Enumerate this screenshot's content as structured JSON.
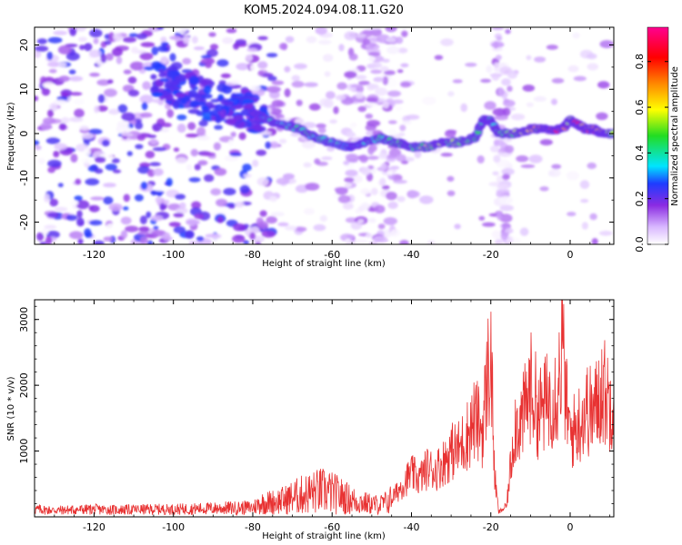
{
  "title": "KOM5.2024.094.08.11.G20",
  "chart_data": [
    {
      "type": "heatmap",
      "xlabel": "Height of straight line (km)",
      "ylabel": "Frequency (Hz)",
      "xlim": [
        -135,
        11
      ],
      "ylim": [
        -25,
        24
      ],
      "x_ticks": [
        -120,
        -100,
        -80,
        -60,
        -40,
        -20,
        0
      ],
      "y_ticks": [
        -20,
        -10,
        0,
        10,
        20
      ],
      "colorbar": {
        "label": "Normalized spectral amplitude",
        "ticks": [
          0.0,
          0.2,
          0.4,
          0.6,
          0.8
        ],
        "range": [
          0,
          0.95
        ],
        "colormap": [
          "#ffffff",
          "#8a2be2",
          "#1e3cff",
          "#00e5ff",
          "#22dd22",
          "#ffff00",
          "#ff8800",
          "#ff0000",
          "#ff0090"
        ]
      },
      "ridge": {
        "x": [
          -80,
          -76,
          -72,
          -68,
          -64,
          -60,
          -56,
          -52,
          -48,
          -44,
          -40,
          -36,
          -32,
          -28,
          -24,
          -22,
          -20,
          -18,
          -14,
          -10,
          -6,
          -2,
          0,
          2,
          4,
          6,
          8,
          11
        ],
        "freq": [
          5,
          3,
          2,
          1,
          -1,
          -2,
          -3,
          -2,
          -1,
          -2,
          -3,
          -3,
          -2,
          -2,
          -1,
          3,
          3,
          0,
          0,
          1,
          1,
          1,
          3,
          2,
          1,
          1,
          0,
          0
        ],
        "amplitude": [
          0.25,
          0.35,
          0.45,
          0.45,
          0.45,
          0.4,
          0.35,
          0.35,
          0.4,
          0.45,
          0.5,
          0.55,
          0.55,
          0.5,
          0.45,
          0.5,
          0.45,
          0.5,
          0.6,
          0.65,
          0.75,
          0.9,
          0.6,
          0.8,
          0.7,
          0.85,
          0.65,
          0.55
        ]
      },
      "noise_amplitude": 0.25
    },
    {
      "type": "line",
      "xlabel": "Height of straight line (km)",
      "ylabel": "SNR (10 * v/v)",
      "xlim": [
        -135,
        11
      ],
      "ylim": [
        0,
        3300
      ],
      "x_ticks": [
        -120,
        -100,
        -80,
        -60,
        -40,
        -20,
        0
      ],
      "y_ticks": [
        1000,
        2000,
        3000
      ],
      "line_color": "#e83232",
      "series": [
        {
          "x": [
            -135,
            -130,
            -125,
            -120,
            -115,
            -110,
            -105,
            -100,
            -95,
            -90,
            -85,
            -80,
            -78,
            -75,
            -72,
            -70,
            -67,
            -65,
            -63,
            -61,
            -58,
            -55,
            -52,
            -50,
            -48,
            -46,
            -44,
            -42,
            -40,
            -38,
            -36,
            -34,
            -32,
            -30,
            -28,
            -26,
            -24,
            -22,
            -21,
            -20,
            -19,
            -18,
            -16,
            -14,
            -12,
            -10,
            -9,
            -8,
            -6,
            -4,
            -3,
            -2,
            -1,
            0,
            2,
            4,
            6,
            8,
            10,
            11
          ],
          "values": [
            120,
            100,
            110,
            120,
            110,
            115,
            120,
            120,
            130,
            140,
            150,
            160,
            250,
            280,
            320,
            380,
            450,
            480,
            520,
            500,
            420,
            320,
            260,
            230,
            220,
            280,
            420,
            620,
            800,
            700,
            900,
            850,
            1000,
            1200,
            1250,
            1500,
            1800,
            1600,
            2500,
            3000,
            700,
            80,
            200,
            1700,
            1800,
            2400,
            2200,
            1900,
            2100,
            2300,
            2400,
            3200,
            2100,
            1500,
            1700,
            2000,
            1900,
            2400,
            2100,
            2400
          ]
        }
      ]
    }
  ]
}
